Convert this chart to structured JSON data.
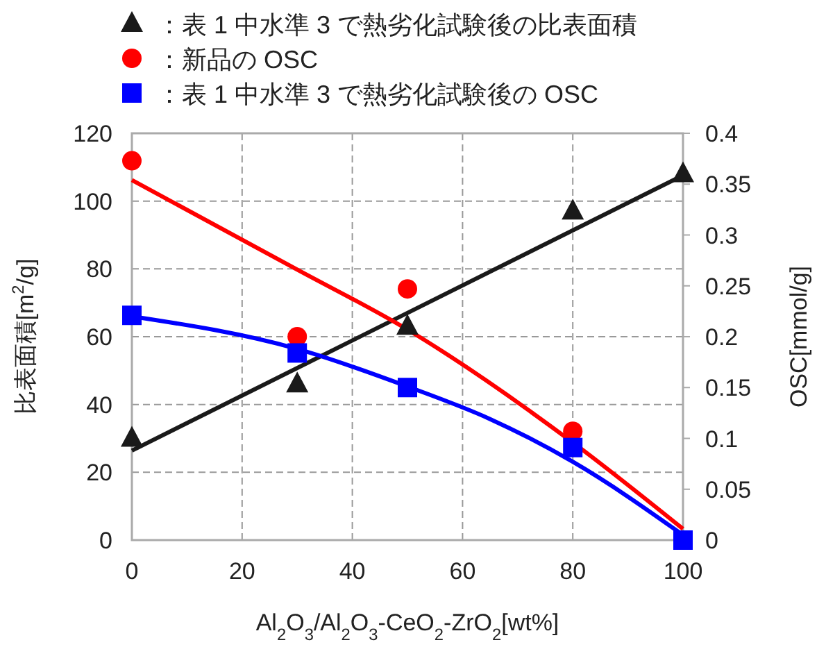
{
  "chart_data": {
    "type": "scatter",
    "xlabel": "Al$_{2}$O$_{3}$/Al$_{2}$O$_{3}$-CeO$_{2}$-ZrO$_{2}$[wt%]",
    "ylabel": "比表面積[m$^{2}$/g]",
    "y2label": "OSC[mmol/g]",
    "x": [
      0,
      30,
      50,
      80,
      100
    ],
    "series": [
      {
        "name": "：表 1 中水準 3 で熱劣化試験後の比表面積",
        "marker": "triangle",
        "color": "#1a1a1a",
        "values": [
          30,
          46,
          63,
          97,
          108
        ]
      },
      {
        "name": "：新品の OSC",
        "marker": "circle",
        "color": "#ff0000",
        "axis": "y2",
        "values": [
          0.373,
          0.2,
          0.247,
          0.107,
          null
        ]
      },
      {
        "name": "：表 1 中水準 3 で熱劣化試験後の OSC",
        "marker": "square",
        "color": "#0000ff",
        "axis": "y2",
        "values": [
          0.221,
          0.184,
          0.15,
          0.091,
          0
        ]
      },
      {
        "type": "line",
        "color": "#1a1a1a",
        "x": [
          0,
          100
        ],
        "values": [
          26.4,
          107.6
        ]
      },
      {
        "type": "line",
        "color": "#ff0000",
        "axis": "y2",
        "x": [
          0,
          30,
          50,
          80,
          100
        ],
        "values": [
          0.354,
          0.266,
          0.207,
          0.096,
          0.011
        ]
      },
      {
        "type": "line",
        "color": "#0000ff",
        "axis": "y2",
        "x": [
          0,
          30,
          50,
          65,
          80,
          100
        ],
        "values": [
          0.22,
          0.188,
          0.151,
          0.119,
          0.077,
          0.005
        ]
      }
    ],
    "xlim": [
      0,
      100
    ],
    "xticks": [
      0,
      20,
      40,
      60,
      80,
      100
    ],
    "ylim": [
      0,
      120
    ],
    "yticks": [
      0,
      20,
      40,
      60,
      80,
      100,
      120
    ],
    "y2lim": [
      0,
      0.4
    ],
    "y2ticks": [
      0,
      0.05,
      0.1,
      0.15,
      0.2,
      0.25,
      0.3,
      0.35,
      0.4
    ],
    "grid": true,
    "legend": "top"
  }
}
